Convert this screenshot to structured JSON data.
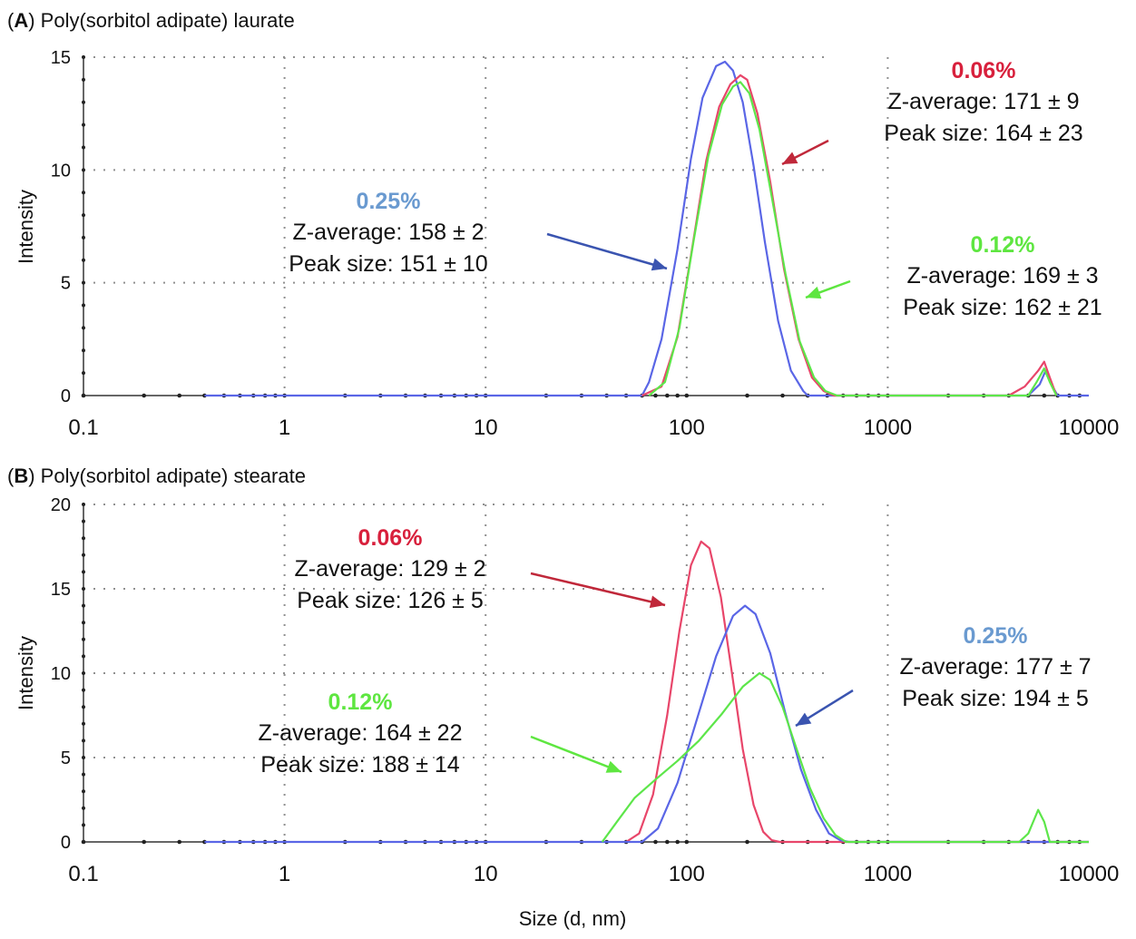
{
  "chart_data": [
    {
      "type": "line",
      "panel_label": "A",
      "title": "Poly(sorbitol adipate) laurate",
      "xlabel": "",
      "ylabel": "Intensity",
      "xscale": "log",
      "xlim": [
        0.1,
        10000
      ],
      "ylim": [
        0,
        15
      ],
      "xticks": [
        "0.1",
        "1",
        "10",
        "100",
        "1000",
        "10000"
      ],
      "yticks": [
        "0",
        "5",
        "10",
        "15"
      ],
      "grid": true,
      "series": [
        {
          "name": "0.25%",
          "color": "#5a66e6",
          "points": [
            [
              0.4,
              0
            ],
            [
              0.6,
              0
            ],
            [
              1,
              0
            ],
            [
              2,
              0
            ],
            [
              5,
              0
            ],
            [
              10,
              0
            ],
            [
              20,
              0
            ],
            [
              40,
              0
            ],
            [
              60,
              0
            ],
            [
              65,
              0.6
            ],
            [
              75,
              2.5
            ],
            [
              90,
              6.5
            ],
            [
              105,
              10.5
            ],
            [
              120,
              13.2
            ],
            [
              140,
              14.6
            ],
            [
              155,
              14.8
            ],
            [
              170,
              14.4
            ],
            [
              190,
              13
            ],
            [
              215,
              10.2
            ],
            [
              245,
              6.8
            ],
            [
              285,
              3.3
            ],
            [
              330,
              1.1
            ],
            [
              380,
              0.2
            ],
            [
              400,
              0
            ],
            [
              1000,
              0
            ],
            [
              4000,
              0
            ],
            [
              5000,
              0
            ],
            [
              5700,
              0.5
            ],
            [
              6100,
              1.1
            ],
            [
              6600,
              0.4
            ],
            [
              7000,
              0
            ],
            [
              8000,
              0
            ],
            [
              10000,
              0
            ]
          ]
        },
        {
          "name": "0.06%",
          "color": "#e8466a",
          "points": [
            [
              60,
              0
            ],
            [
              75,
              0.4
            ],
            [
              90,
              2.6
            ],
            [
              105,
              6.2
            ],
            [
              125,
              10.4
            ],
            [
              145,
              12.8
            ],
            [
              165,
              13.8
            ],
            [
              185,
              14.2
            ],
            [
              200,
              14
            ],
            [
              225,
              12.5
            ],
            [
              260,
              9.5
            ],
            [
              305,
              5.6
            ],
            [
              360,
              2.5
            ],
            [
              420,
              0.8
            ],
            [
              480,
              0.2
            ],
            [
              540,
              0
            ],
            [
              1000,
              0
            ],
            [
              4000,
              0
            ],
            [
              4800,
              0.4
            ],
            [
              5600,
              1.1
            ],
            [
              6000,
              1.5
            ],
            [
              6400,
              0.8
            ],
            [
              6900,
              0
            ]
          ]
        },
        {
          "name": "0.12%",
          "color": "#5de64a",
          "points": [
            [
              65,
              0
            ],
            [
              78,
              0.6
            ],
            [
              92,
              3
            ],
            [
              108,
              6.8
            ],
            [
              128,
              10.6
            ],
            [
              150,
              12.9
            ],
            [
              170,
              13.7
            ],
            [
              185,
              13.9
            ],
            [
              205,
              13.4
            ],
            [
              230,
              11.8
            ],
            [
              265,
              8.8
            ],
            [
              310,
              5.4
            ],
            [
              365,
              2.4
            ],
            [
              430,
              0.8
            ],
            [
              490,
              0.2
            ],
            [
              560,
              0
            ],
            [
              1000,
              0
            ],
            [
              4000,
              0
            ],
            [
              5000,
              0
            ],
            [
              5500,
              0.6
            ],
            [
              6000,
              1.2
            ],
            [
              6400,
              0.6
            ],
            [
              6900,
              0
            ]
          ]
        }
      ],
      "annotations": [
        {
          "title": "0.25%",
          "color": "#6a9ad0",
          "lines": [
            "Z-average: 158 ± 2",
            "Peak size: 151 ± 10"
          ]
        },
        {
          "title": "0.06%",
          "color": "#d8203c",
          "lines": [
            "Z-average: 171 ± 9",
            "Peak size: 164 ± 23"
          ]
        },
        {
          "title": "0.12%",
          "color": "#5ee640",
          "lines": [
            "Z-average: 169 ± 3",
            "Peak size: 162 ± 21"
          ]
        }
      ]
    },
    {
      "type": "line",
      "panel_label": "B",
      "title": "Poly(sorbitol adipate) stearate",
      "xlabel": "Size (d, nm)",
      "ylabel": "Intensity",
      "xscale": "log",
      "xlim": [
        0.1,
        10000
      ],
      "ylim": [
        0,
        20
      ],
      "xticks": [
        "0.1",
        "1",
        "10",
        "100",
        "1000",
        "10000"
      ],
      "yticks": [
        "0",
        "5",
        "10",
        "15",
        "20"
      ],
      "grid": true,
      "series": [
        {
          "name": "0.06%",
          "color": "#e8466a",
          "points": [
            [
              50,
              0
            ],
            [
              58,
              0.5
            ],
            [
              68,
              2.8
            ],
            [
              80,
              7.5
            ],
            [
              92,
              12.5
            ],
            [
              105,
              16.4
            ],
            [
              118,
              17.8
            ],
            [
              130,
              17.4
            ],
            [
              148,
              14.5
            ],
            [
              168,
              10
            ],
            [
              190,
              5.5
            ],
            [
              215,
              2.2
            ],
            [
              240,
              0.6
            ],
            [
              265,
              0.1
            ],
            [
              290,
              0
            ],
            [
              10000,
              0
            ]
          ]
        },
        {
          "name": "0.25%",
          "color": "#5a66e6",
          "points": [
            [
              0.4,
              0
            ],
            [
              1,
              0
            ],
            [
              10,
              0
            ],
            [
              50,
              0
            ],
            [
              60,
              0
            ],
            [
              72,
              0.8
            ],
            [
              90,
              3.5
            ],
            [
              112,
              7.2
            ],
            [
              140,
              11
            ],
            [
              170,
              13.4
            ],
            [
              195,
              14
            ],
            [
              220,
              13.5
            ],
            [
              260,
              11.2
            ],
            [
              310,
              7.6
            ],
            [
              370,
              4.3
            ],
            [
              440,
              1.9
            ],
            [
              510,
              0.5
            ],
            [
              580,
              0.1
            ],
            [
              640,
              0
            ],
            [
              10000,
              0
            ]
          ]
        },
        {
          "name": "0.12%",
          "color": "#5de64a",
          "points": [
            [
              38,
              0
            ],
            [
              45,
              1.2
            ],
            [
              55,
              2.6
            ],
            [
              70,
              3.7
            ],
            [
              90,
              4.8
            ],
            [
              115,
              6
            ],
            [
              150,
              7.6
            ],
            [
              190,
              9.2
            ],
            [
              230,
              10
            ],
            [
              260,
              9.6
            ],
            [
              300,
              8
            ],
            [
              350,
              5.6
            ],
            [
              410,
              3.2
            ],
            [
              480,
              1.4
            ],
            [
              550,
              0.4
            ],
            [
              620,
              0
            ],
            [
              1000,
              0
            ],
            [
              4500,
              0
            ],
            [
              5000,
              0.5
            ],
            [
              5600,
              1.9
            ],
            [
              6000,
              1.2
            ],
            [
              6400,
              0
            ],
            [
              10000,
              0
            ]
          ]
        }
      ],
      "annotations": [
        {
          "title": "0.06%",
          "color": "#d8203c",
          "lines": [
            "Z-average: 129 ± 2",
            "Peak size: 126 ± 5"
          ]
        },
        {
          "title": "0.12%",
          "color": "#5ee640",
          "lines": [
            "Z-average: 164 ± 22",
            "Peak size: 188 ± 14"
          ]
        },
        {
          "title": "0.25%",
          "color": "#6a9ad0",
          "lines": [
            "Z-average: 177 ± 7",
            "Peak size: 194 ± 5"
          ]
        }
      ]
    }
  ]
}
